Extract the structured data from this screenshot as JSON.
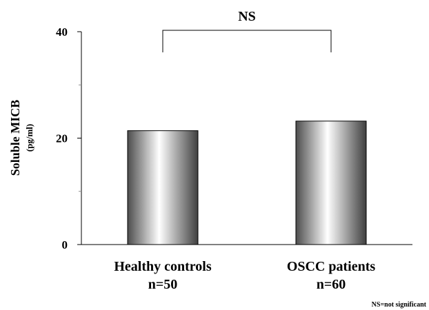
{
  "chart_data": {
    "type": "bar",
    "categories": [
      "Healthy controls",
      "OSCC patients"
    ],
    "category_sublabels": [
      "n=50",
      "n=60"
    ],
    "values": [
      21.4,
      23.2
    ],
    "ylabel": "Soluble MICB",
    "ylabel_unit": "(pg/ml)",
    "ylim": [
      0,
      40
    ],
    "yticks": [
      0,
      20,
      40
    ],
    "ytick_labels": [
      "0",
      "20",
      "40"
    ],
    "minor_yticks": [
      10,
      30
    ],
    "grid": false,
    "significance": {
      "label": "NS",
      "between": [
        0,
        1
      ]
    },
    "footnote": "NS=not significant"
  }
}
